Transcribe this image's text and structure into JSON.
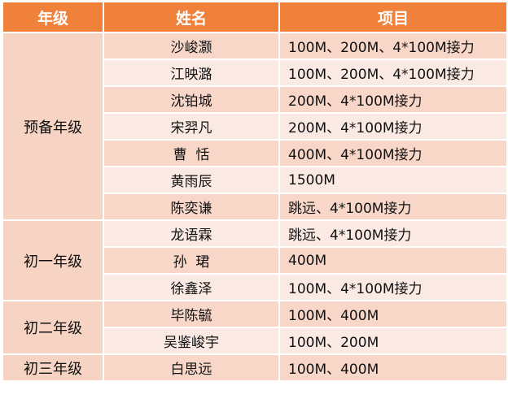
{
  "table": {
    "headers": {
      "grade": "年级",
      "name": "姓名",
      "events": "项目"
    },
    "groups": [
      {
        "grade": "预备年级",
        "rows": [
          {
            "name": "沙峻灏",
            "events": "100M、200M、4*100M接力"
          },
          {
            "name": "江映潞",
            "events": "100M、200M、4*100M接力"
          },
          {
            "name": "沈铂城",
            "events": "200M、4*100M接力"
          },
          {
            "name": "宋羿凡",
            "events": "200M、4*100M接力"
          },
          {
            "name": "曹  恬",
            "events": "400M、4*100M接力"
          },
          {
            "name": "黄雨辰",
            "events": "1500M"
          },
          {
            "name": "陈奕谦",
            "events": "跳远、4*100M接力"
          }
        ]
      },
      {
        "grade": "初一年级",
        "rows": [
          {
            "name": "龙语霖",
            "events": "跳远、4*100M接力"
          },
          {
            "name": "孙  珺",
            "events": "400M"
          },
          {
            "name": "徐鑫泽",
            "events": "100M、4*100M接力"
          }
        ]
      },
      {
        "grade": "初二年级",
        "rows": [
          {
            "name": "毕陈毓",
            "events": "100M、400M"
          },
          {
            "name": "吴鉴峻宇",
            "events": "100M、200M"
          }
        ]
      },
      {
        "grade": "初三年级",
        "rows": [
          {
            "name": "白思远",
            "events": "100M、400M"
          }
        ]
      }
    ]
  }
}
